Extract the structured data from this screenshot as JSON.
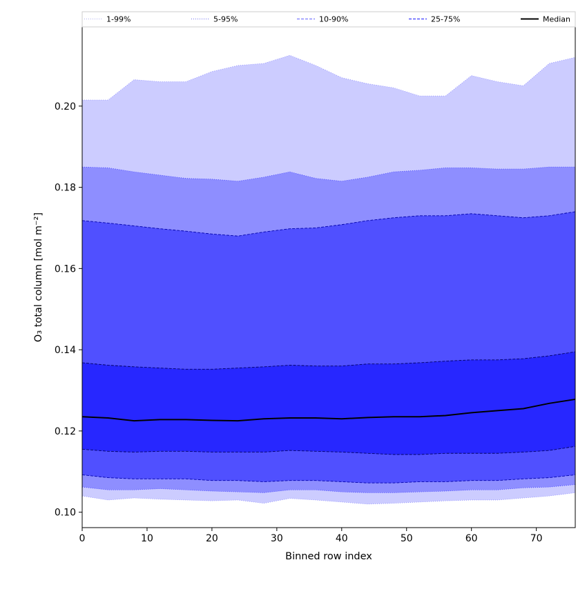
{
  "colors": {
    "band_1_99": "#ccccff",
    "band_5_95": "#8e8eff",
    "band_10_90": "#5050ff",
    "band_25_75": "#2727ff",
    "median": "#000000"
  },
  "chart_data": {
    "type": "area",
    "xlabel": "Binned row index",
    "ylabel": "O₃ total column [mol m⁻²]",
    "xlim": [
      0,
      76
    ],
    "ylim": [
      0.0962,
      0.2195
    ],
    "xticks": [
      0,
      10,
      20,
      30,
      40,
      50,
      60,
      70
    ],
    "yticks": [
      0.1,
      0.12,
      0.14,
      0.16,
      0.18,
      0.2
    ],
    "ytick_labels": [
      "0.10",
      "0.12",
      "0.14",
      "0.16",
      "0.18",
      "0.20"
    ],
    "grid": false,
    "legend": {
      "placement": "top",
      "entries": [
        {
          "label": "1-99%",
          "style": "dotted",
          "color": "#ccccff"
        },
        {
          "label": "5-95%",
          "style": "dotted",
          "color": "#8e8eff"
        },
        {
          "label": "10-90%",
          "style": "dashed",
          "color": "#5050ff"
        },
        {
          "label": "25-75%",
          "style": "dashed",
          "color": "#2727ff"
        },
        {
          "label": "Median",
          "style": "solid",
          "color": "#000000"
        }
      ]
    },
    "x": [
      0,
      4,
      8,
      12,
      16,
      20,
      24,
      28,
      32,
      36,
      40,
      44,
      48,
      52,
      56,
      60,
      64,
      68,
      72,
      76
    ],
    "series": [
      {
        "name": "1-99%",
        "lower": [
          0.104,
          0.103,
          0.1035,
          0.1032,
          0.103,
          0.1028,
          0.103,
          0.1022,
          0.1034,
          0.103,
          0.1025,
          0.102,
          0.1022,
          0.1025,
          0.1028,
          0.103,
          0.103,
          0.1035,
          0.104,
          0.1048
        ],
        "upper": [
          0.2015,
          0.2015,
          0.2065,
          0.206,
          0.206,
          0.2085,
          0.21,
          0.2105,
          0.2125,
          0.21,
          0.207,
          0.2055,
          0.2045,
          0.2025,
          0.2025,
          0.2075,
          0.206,
          0.205,
          0.2105,
          0.212
        ]
      },
      {
        "name": "5-95%",
        "lower": [
          0.1062,
          0.1055,
          0.1055,
          0.1058,
          0.1055,
          0.1052,
          0.105,
          0.1048,
          0.1055,
          0.1055,
          0.105,
          0.1048,
          0.1048,
          0.105,
          0.1052,
          0.1055,
          0.1055,
          0.106,
          0.1062,
          0.1068
        ],
        "upper": [
          0.185,
          0.1848,
          0.1838,
          0.183,
          0.1822,
          0.182,
          0.1815,
          0.1825,
          0.1838,
          0.1822,
          0.1815,
          0.1825,
          0.1838,
          0.1842,
          0.1848,
          0.1848,
          0.1845,
          0.1845,
          0.185,
          0.185
        ]
      },
      {
        "name": "10-90%",
        "lower": [
          0.1092,
          0.1085,
          0.1082,
          0.1082,
          0.1082,
          0.1078,
          0.1078,
          0.1075,
          0.1078,
          0.1078,
          0.1075,
          0.1072,
          0.1072,
          0.1075,
          0.1075,
          0.1078,
          0.1078,
          0.1082,
          0.1085,
          0.1092
        ],
        "upper": [
          0.1718,
          0.1712,
          0.1705,
          0.1698,
          0.1692,
          0.1685,
          0.168,
          0.169,
          0.1698,
          0.17,
          0.1708,
          0.1718,
          0.1725,
          0.173,
          0.173,
          0.1735,
          0.173,
          0.1725,
          0.173,
          0.174
        ]
      },
      {
        "name": "25-75%",
        "lower": [
          0.1155,
          0.115,
          0.1148,
          0.115,
          0.115,
          0.1148,
          0.1148,
          0.1148,
          0.1152,
          0.115,
          0.1148,
          0.1145,
          0.1142,
          0.1142,
          0.1145,
          0.1145,
          0.1145,
          0.1148,
          0.1152,
          0.1162
        ],
        "upper": [
          0.1368,
          0.1362,
          0.1358,
          0.1355,
          0.1352,
          0.1352,
          0.1355,
          0.1358,
          0.1362,
          0.136,
          0.136,
          0.1365,
          0.1365,
          0.1368,
          0.1372,
          0.1375,
          0.1375,
          0.1378,
          0.1385,
          0.1395
        ]
      },
      {
        "name": "Median",
        "values": [
          0.1235,
          0.1232,
          0.1225,
          0.1228,
          0.1228,
          0.1226,
          0.1225,
          0.123,
          0.1232,
          0.1232,
          0.123,
          0.1233,
          0.1235,
          0.1235,
          0.1238,
          0.1245,
          0.125,
          0.1255,
          0.1268,
          0.1278
        ]
      }
    ]
  }
}
